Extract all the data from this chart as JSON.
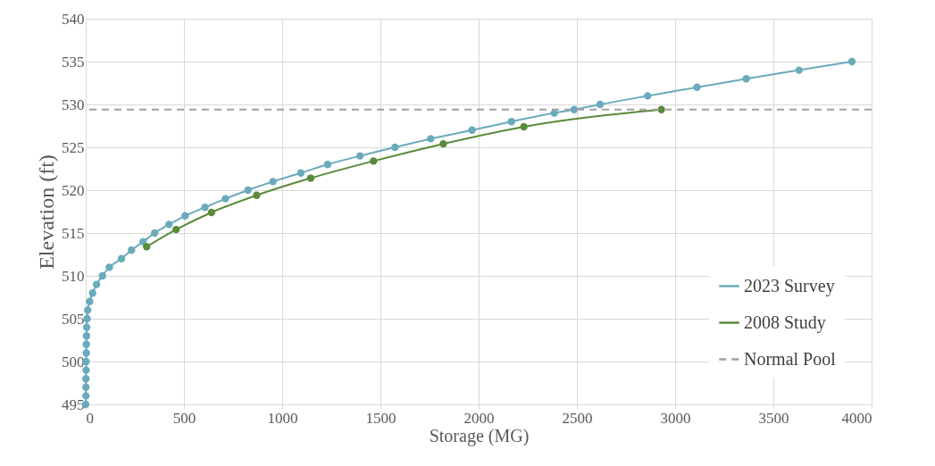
{
  "chart_data": {
    "type": "line",
    "xlabel": "Storage (MG)",
    "ylabel": "Elevation (ft)",
    "xlim": [
      0,
      4000
    ],
    "xticks": [
      0,
      500,
      1000,
      1500,
      2000,
      2500,
      3000,
      3500,
      4000
    ],
    "ylim": [
      495,
      540
    ],
    "yticks": [
      495,
      500,
      505,
      510,
      515,
      520,
      525,
      530,
      535,
      540
    ],
    "grid": true,
    "legend": "bottom right",
    "marker": "circle",
    "series": [
      {
        "name": "2023 Survey",
        "color": "#6aaabb",
        "x": [
          0,
          1,
          1,
          1,
          2,
          2,
          3,
          3,
          4,
          5,
          7,
          10,
          20,
          35,
          55,
          85,
          120,
          182,
          233,
          292,
          351,
          424,
          506,
          607,
          711,
          826,
          953,
          1095,
          1231,
          1396,
          1574,
          1756,
          1966,
          2167,
          2385,
          2486,
          2618,
          2860,
          3111,
          3362,
          3631,
          3900
        ],
        "values": [
          495,
          496,
          497,
          498,
          499,
          500,
          501,
          502,
          503,
          504,
          505,
          506,
          507,
          508,
          509,
          510,
          511,
          512,
          513,
          514,
          515,
          516,
          517,
          518,
          519,
          520,
          521,
          522,
          523,
          524,
          525,
          526,
          527,
          528,
          529,
          529.4,
          530,
          531,
          532,
          533,
          534,
          535
        ]
      },
      {
        "name": "2008 Study",
        "color": "#5a8a3a",
        "x": [
          310,
          460,
          640,
          870,
          1145,
          1465,
          1820,
          2230,
          2930
        ],
        "values": [
          513.4,
          515.4,
          517.4,
          519.4,
          521.4,
          523.4,
          525.4,
          527.4,
          529.4
        ]
      }
    ],
    "ref_lines": [
      {
        "axis": "y",
        "value": 529.4,
        "label": "Normal Pool",
        "color": "#a0a0a0",
        "line_style": "dashed"
      }
    ]
  }
}
